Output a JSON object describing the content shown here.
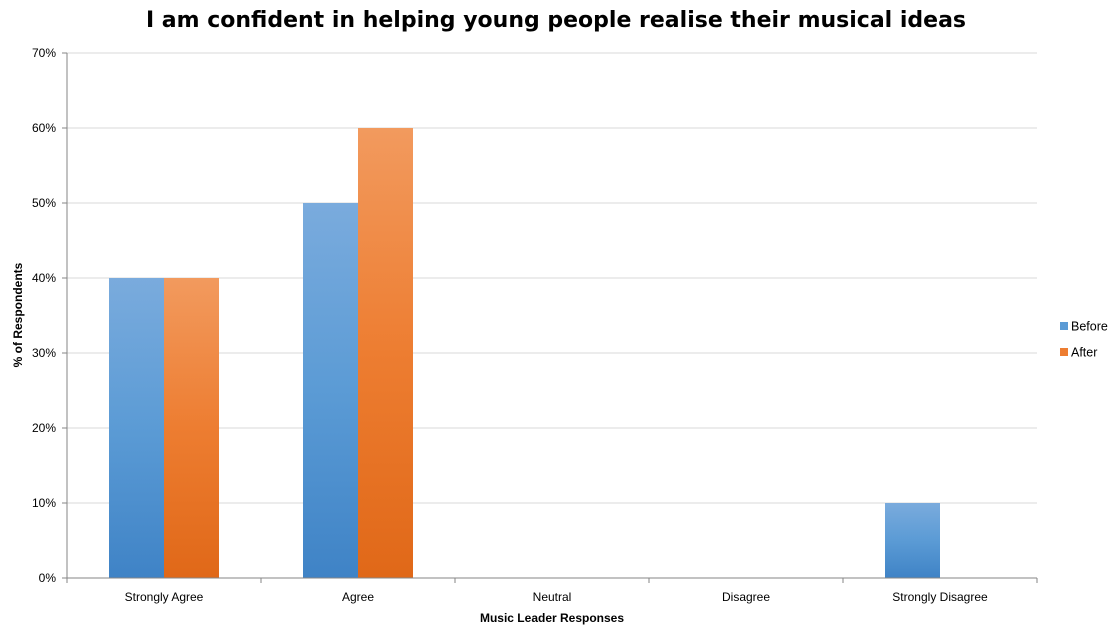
{
  "chart_data": {
    "type": "bar",
    "title": "I am confident in helping young people realise their musical ideas",
    "xlabel": "Music Leader Responses",
    "ylabel": "% of Respondents",
    "categories": [
      "Strongly Agree",
      "Agree",
      "Neutral",
      "Disagree",
      "Strongly Disagree"
    ],
    "series": [
      {
        "name": "Before",
        "values": [
          40,
          50,
          0,
          0,
          10
        ],
        "color": "#5B9BD5"
      },
      {
        "name": "After",
        "values": [
          40,
          60,
          0,
          0,
          0
        ],
        "color": "#ED7D31"
      }
    ],
    "ylim": [
      0,
      70
    ],
    "yticks": [
      0,
      10,
      20,
      30,
      40,
      50,
      60,
      70
    ],
    "ytick_labels": [
      "0%",
      "10%",
      "20%",
      "30%",
      "40%",
      "50%",
      "60%",
      "70%"
    ],
    "grid": true,
    "legend_position": "right"
  }
}
